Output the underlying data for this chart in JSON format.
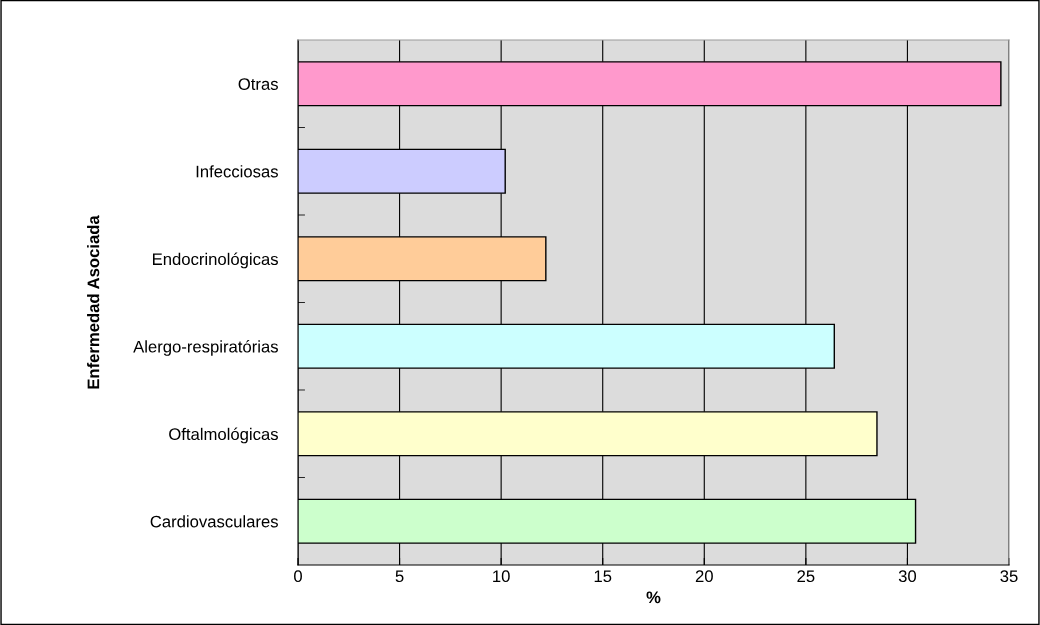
{
  "chart_data": {
    "type": "bar",
    "orientation": "horizontal",
    "xlabel": "%",
    "ylabel": "Enfermedad Asociada",
    "categories": [
      "Otras",
      "Infecciosas",
      "Endocrinológicas",
      "Alergo-respiratórias",
      "Oftalmológicas",
      "Cardiovasculares"
    ],
    "values": [
      34.6,
      10.2,
      12.2,
      26.4,
      28.5,
      30.4
    ],
    "colors": [
      "#ff99cc",
      "#ccccff",
      "#ffcc99",
      "#ccffff",
      "#ffffcc",
      "#ccffcc"
    ],
    "xlim": [
      0,
      35
    ],
    "xticks": [
      0,
      5,
      10,
      15,
      20,
      25,
      30,
      35
    ],
    "grid": "x",
    "legend": false
  }
}
